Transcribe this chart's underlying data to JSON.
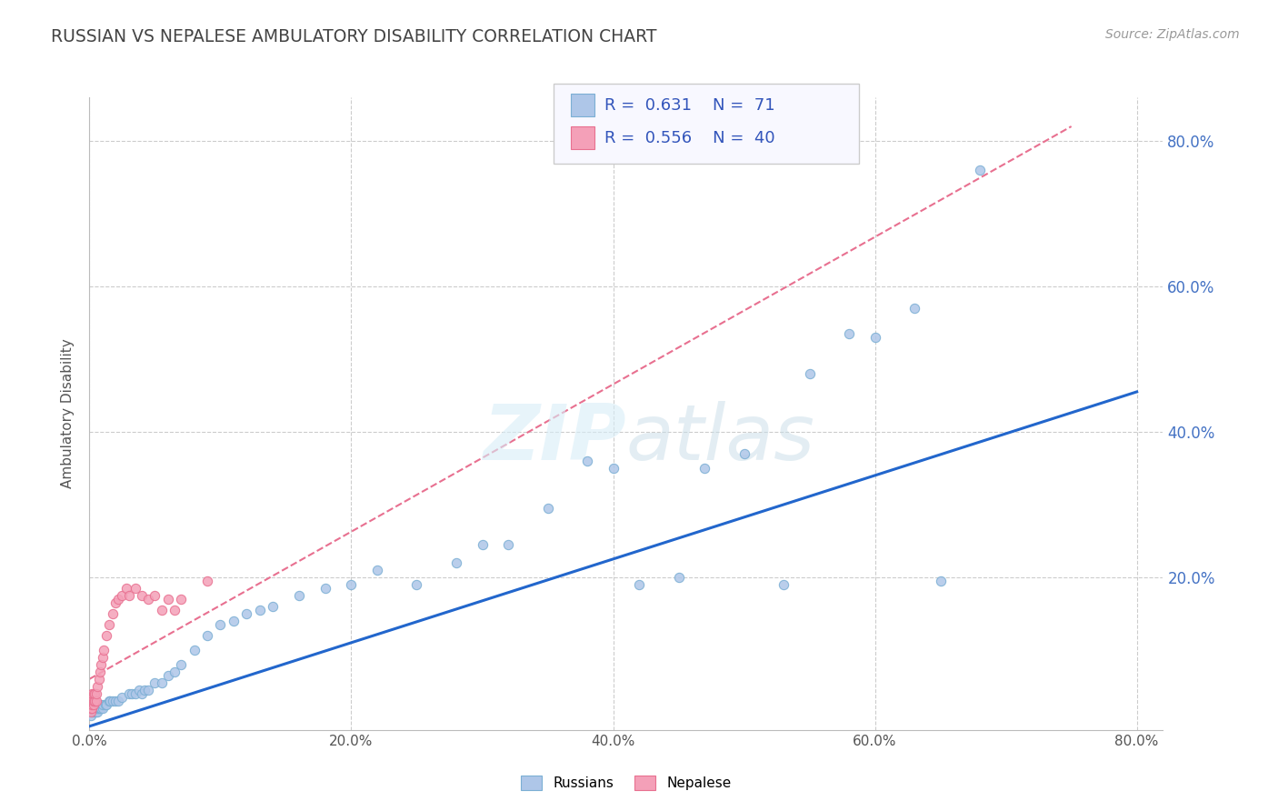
{
  "title": "RUSSIAN VS NEPALESE AMBULATORY DISABILITY CORRELATION CHART",
  "source": "Source: ZipAtlas.com",
  "ylabel": "Ambulatory Disability",
  "xlim": [
    0.0,
    0.82
  ],
  "ylim": [
    -0.01,
    0.86
  ],
  "xtick_labels": [
    "0.0%",
    "20.0%",
    "40.0%",
    "60.0%",
    "80.0%"
  ],
  "xtick_vals": [
    0.0,
    0.2,
    0.4,
    0.6,
    0.8
  ],
  "ytick_labels": [
    "20.0%",
    "40.0%",
    "60.0%",
    "80.0%"
  ],
  "ytick_vals": [
    0.2,
    0.4,
    0.6,
    0.8
  ],
  "watermark": "ZIPatlas",
  "legend_R_russian": "R =  0.631",
  "legend_N_russian": "N =  71",
  "legend_R_nepalese": "R =  0.556",
  "legend_N_nepalese": "N =  40",
  "russian_fill": "#aec6e8",
  "russian_edge": "#7bafd4",
  "nepalese_fill": "#f4a0b8",
  "nepalese_edge": "#e87090",
  "trendline_russian_color": "#2266cc",
  "trendline_nepalese_color": "#e87090",
  "grid_color": "#cccccc",
  "background_color": "#ffffff",
  "russians_x": [
    0.001,
    0.001,
    0.002,
    0.002,
    0.002,
    0.003,
    0.003,
    0.003,
    0.004,
    0.004,
    0.004,
    0.005,
    0.005,
    0.006,
    0.006,
    0.006,
    0.007,
    0.008,
    0.008,
    0.009,
    0.01,
    0.01,
    0.012,
    0.013,
    0.015,
    0.016,
    0.018,
    0.02,
    0.022,
    0.025,
    0.03,
    0.032,
    0.035,
    0.038,
    0.04,
    0.042,
    0.045,
    0.05,
    0.055,
    0.06,
    0.065,
    0.07,
    0.08,
    0.09,
    0.1,
    0.11,
    0.12,
    0.13,
    0.14,
    0.16,
    0.18,
    0.2,
    0.22,
    0.25,
    0.28,
    0.3,
    0.32,
    0.35,
    0.38,
    0.4,
    0.42,
    0.45,
    0.47,
    0.5,
    0.53,
    0.55,
    0.58,
    0.6,
    0.63,
    0.65,
    0.68
  ],
  "russians_y": [
    0.01,
    0.02,
    0.015,
    0.02,
    0.025,
    0.015,
    0.02,
    0.025,
    0.015,
    0.02,
    0.025,
    0.015,
    0.02,
    0.015,
    0.02,
    0.025,
    0.02,
    0.02,
    0.025,
    0.02,
    0.02,
    0.025,
    0.025,
    0.025,
    0.03,
    0.03,
    0.03,
    0.03,
    0.03,
    0.035,
    0.04,
    0.04,
    0.04,
    0.045,
    0.04,
    0.045,
    0.045,
    0.055,
    0.055,
    0.065,
    0.07,
    0.08,
    0.1,
    0.12,
    0.135,
    0.14,
    0.15,
    0.155,
    0.16,
    0.175,
    0.185,
    0.19,
    0.21,
    0.19,
    0.22,
    0.245,
    0.245,
    0.295,
    0.36,
    0.35,
    0.19,
    0.2,
    0.35,
    0.37,
    0.19,
    0.48,
    0.535,
    0.53,
    0.57,
    0.195,
    0.76
  ],
  "nepalese_x": [
    0.0,
    0.0,
    0.001,
    0.001,
    0.001,
    0.001,
    0.002,
    0.002,
    0.002,
    0.002,
    0.003,
    0.003,
    0.003,
    0.004,
    0.004,
    0.005,
    0.005,
    0.006,
    0.007,
    0.008,
    0.009,
    0.01,
    0.011,
    0.013,
    0.015,
    0.018,
    0.02,
    0.022,
    0.025,
    0.028,
    0.03,
    0.035,
    0.04,
    0.045,
    0.05,
    0.055,
    0.06,
    0.065,
    0.07,
    0.09
  ],
  "nepalese_y": [
    0.02,
    0.03,
    0.015,
    0.02,
    0.025,
    0.03,
    0.02,
    0.025,
    0.03,
    0.04,
    0.025,
    0.03,
    0.04,
    0.03,
    0.04,
    0.03,
    0.04,
    0.05,
    0.06,
    0.07,
    0.08,
    0.09,
    0.1,
    0.12,
    0.135,
    0.15,
    0.165,
    0.17,
    0.175,
    0.185,
    0.175,
    0.185,
    0.175,
    0.17,
    0.175,
    0.155,
    0.17,
    0.155,
    0.17,
    0.195
  ],
  "trend_rus_x0": 0.0,
  "trend_rus_y0": -0.005,
  "trend_rus_x1": 0.8,
  "trend_rus_y1": 0.455,
  "trend_nep_x0": 0.0,
  "trend_nep_y0": 0.06,
  "trend_nep_x1": 0.75,
  "trend_nep_y1": 0.82
}
